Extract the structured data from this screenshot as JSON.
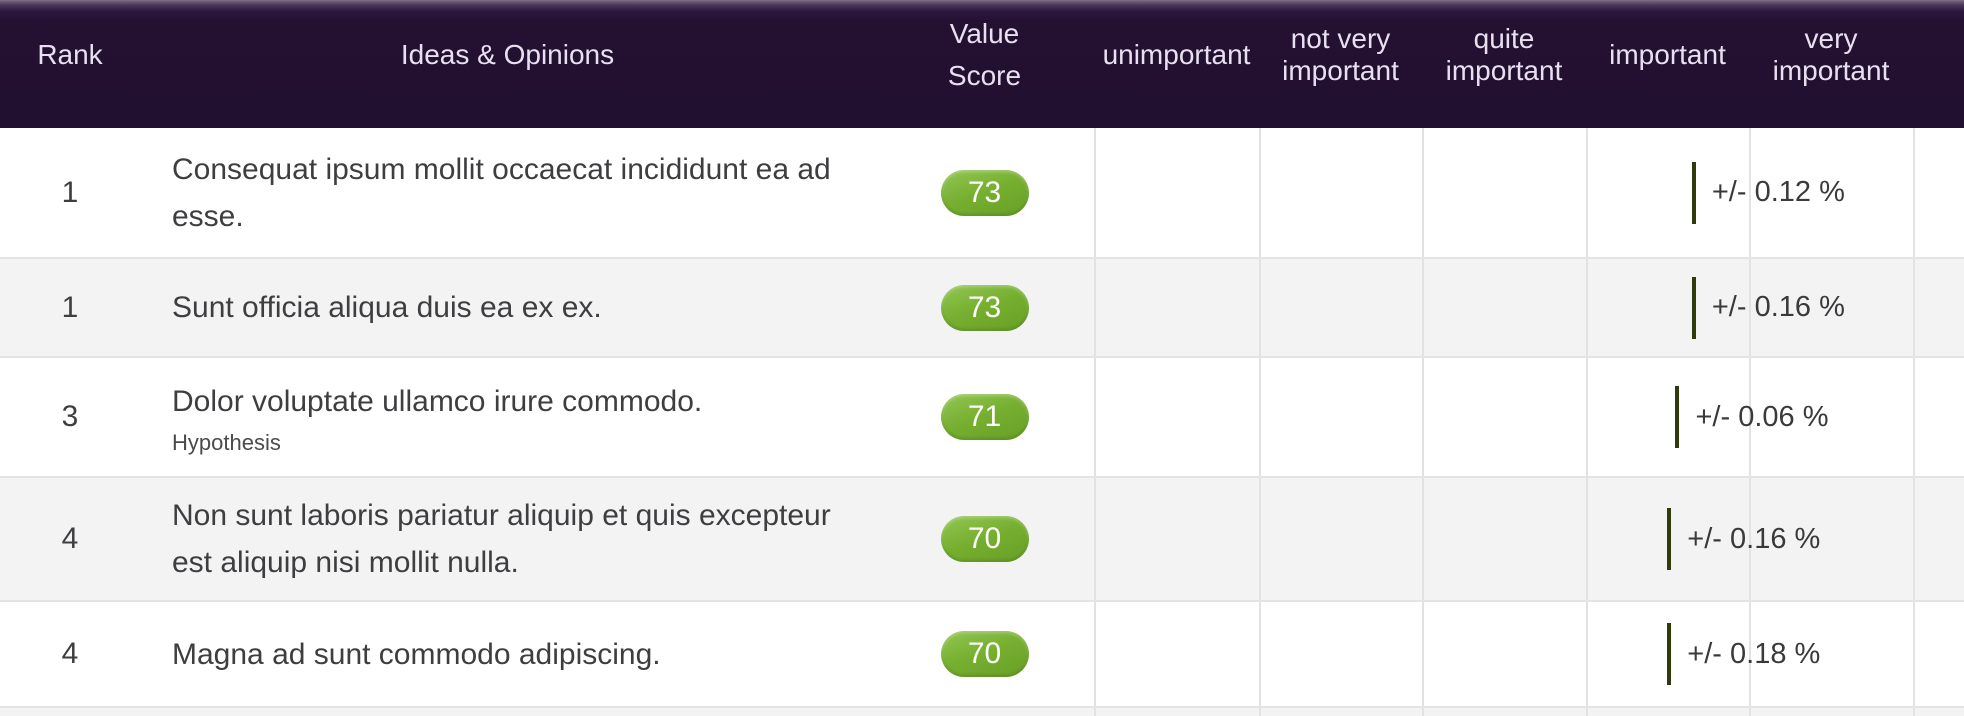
{
  "table": {
    "header": {
      "rank": "Rank",
      "ideas": "Ideas & Opinions",
      "value_score": [
        "Value",
        "Score"
      ],
      "scale_labels": [
        "unimportant",
        "not very important",
        "quite important",
        "important",
        "very important"
      ]
    },
    "rows": [
      {
        "rank": "1",
        "text": "Consequat ipsum mollit occaecat incididunt ea ad esse.",
        "subtitle": "",
        "score": "73",
        "score_pct": 73,
        "error_margin": "+/- 0.12 %"
      },
      {
        "rank": "1",
        "text": "Sunt officia aliqua duis ea ex ex.",
        "subtitle": "",
        "score": "73",
        "score_pct": 73,
        "error_margin": "+/- 0.16 %"
      },
      {
        "rank": "3",
        "text": "Dolor voluptate ullamco irure commodo.",
        "subtitle": "Hypothesis",
        "score": "71",
        "score_pct": 71,
        "error_margin": "+/- 0.06 %"
      },
      {
        "rank": "4",
        "text": "Non sunt laboris pariatur aliquip et quis excepteur est aliquip nisi mollit nulla.",
        "subtitle": "",
        "score": "70",
        "score_pct": 70,
        "error_margin": "+/- 0.16 %"
      },
      {
        "rank": "4",
        "text": "Magna ad sunt commodo adipiscing.",
        "subtitle": "",
        "score": "70",
        "score_pct": 70,
        "error_margin": "+/- 0.18 %"
      }
    ],
    "colors": {
      "header_bg": "#241132",
      "header_text": "#e8e0f0",
      "badge_green": "#76af30",
      "marker_line": "#2f3b0b",
      "row_alt_bg": "#f3f3f4",
      "grid_line": "#e2e2e4"
    }
  }
}
